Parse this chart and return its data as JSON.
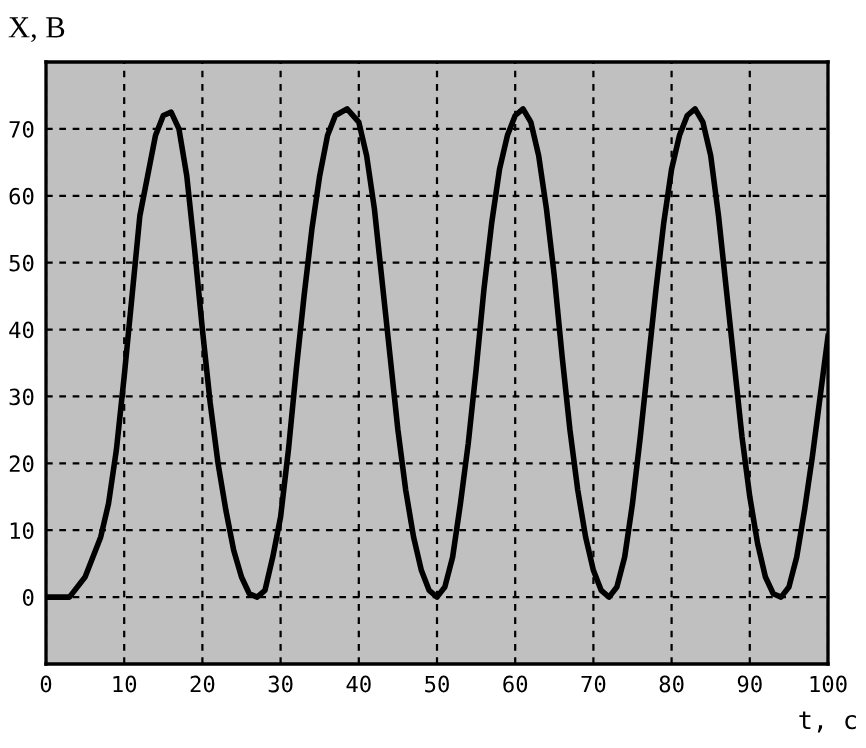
{
  "chart_data": {
    "type": "line",
    "xlabel": "t, c",
    "ylabel": "X, B",
    "x": [
      0,
      3,
      5,
      7,
      8,
      9,
      10,
      11,
      12,
      13,
      14,
      15,
      16,
      17,
      18,
      19,
      20,
      21,
      22,
      23,
      24,
      25,
      26,
      27,
      28,
      29,
      30,
      31,
      32,
      33,
      34,
      35,
      36,
      37,
      38.5,
      40,
      41,
      42,
      43,
      44,
      45,
      46,
      47,
      48,
      49,
      50,
      51,
      52,
      53,
      54,
      55,
      56,
      57,
      58,
      59,
      60,
      61,
      62,
      63,
      64,
      65,
      66,
      67,
      68,
      69,
      70,
      71,
      72,
      73,
      74,
      75,
      76,
      77,
      78,
      79,
      80,
      81,
      82,
      83,
      84,
      85,
      86,
      87,
      88,
      89,
      90,
      91,
      92,
      93,
      94,
      95,
      96,
      97,
      98,
      99,
      100
    ],
    "series": [
      {
        "color": "#000000",
        "values": [
          0,
          0,
          3,
          9,
          14,
          22,
          33,
          45,
          57,
          63,
          69,
          72,
          72.5,
          70,
          63,
          52,
          40,
          29,
          20,
          13,
          7,
          3,
          0.5,
          0,
          1,
          6,
          12,
          22,
          34,
          45,
          55,
          63,
          69,
          72,
          73,
          71,
          66,
          58,
          47,
          36,
          25,
          16,
          9,
          4,
          1,
          0,
          1.5,
          6,
          14,
          23,
          34,
          46,
          56,
          64,
          69,
          72,
          73,
          71,
          66,
          58,
          48,
          36,
          25,
          16,
          9,
          4,
          1,
          0,
          1.5,
          6,
          14,
          24,
          35,
          46,
          56,
          64,
          69,
          72,
          73,
          71,
          66,
          57,
          46,
          35,
          24,
          15,
          8,
          3,
          0.5,
          0,
          1.5,
          6,
          13,
          21,
          30,
          39
        ]
      }
    ],
    "xlim": [
      0,
      100
    ],
    "xticks": [
      0,
      10,
      20,
      30,
      40,
      50,
      60,
      70,
      80,
      90,
      100
    ],
    "ylim": [
      -10,
      80
    ],
    "yticks": [
      0,
      10,
      20,
      30,
      40,
      50,
      60,
      70
    ],
    "grid": true,
    "line_style": "solid",
    "marker": "none"
  }
}
